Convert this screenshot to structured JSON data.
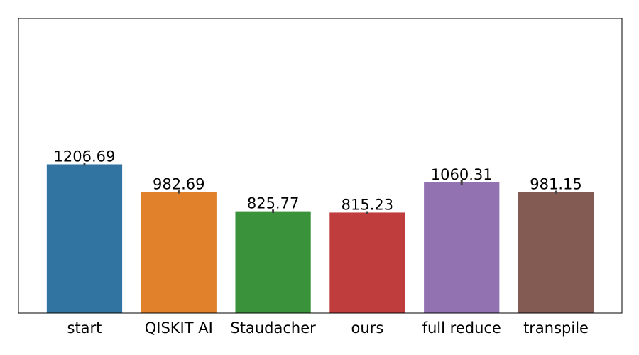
{
  "chart_data": {
    "type": "bar",
    "title": "",
    "xlabel": "",
    "ylabel": "",
    "categories": [
      "start",
      "QISKIT AI",
      "Staudacher",
      "ours",
      "full reduce",
      "transpile"
    ],
    "values": [
      1206.69,
      982.69,
      825.77,
      815.23,
      1060.31,
      981.15
    ],
    "value_labels": [
      "1206.69",
      "982.69",
      "825.77",
      "815.23",
      "1060.31",
      "981.15"
    ],
    "error": [
      22,
      26,
      28,
      22,
      38,
      24
    ],
    "ylim": [
      0,
      2390
    ],
    "grid": false,
    "y_ticks_visible": false,
    "colors": [
      "#3274a1",
      "#e1812c",
      "#3a923a",
      "#c03d3e",
      "#9372b2",
      "#845b53"
    ],
    "error_color": "#424242"
  }
}
